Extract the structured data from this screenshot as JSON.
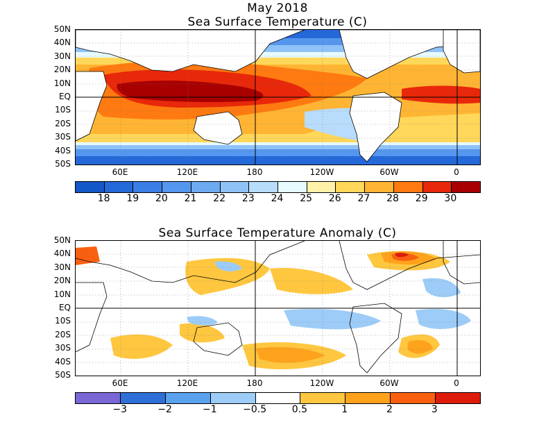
{
  "titles": {
    "month": "May 2018",
    "sst": "Sea Surface Temperature (C)",
    "anomaly": "Sea Surface Temperature Anomaly (C)"
  },
  "lat_labels": [
    "50N",
    "40N",
    "30N",
    "20N",
    "10N",
    "EQ",
    "10S",
    "20S",
    "30S",
    "40S",
    "50S"
  ],
  "lon_labels": [
    "60E",
    "120E",
    "180",
    "120W",
    "60W",
    "0"
  ],
  "sst_colorbar": {
    "labels": [
      "18",
      "19",
      "20",
      "21",
      "22",
      "23",
      "24",
      "25",
      "26",
      "27",
      "28",
      "29",
      "30"
    ],
    "colors": [
      "#1457c6",
      "#2568d8",
      "#3b7fe6",
      "#5596ee",
      "#6daaf2",
      "#8fc2f7",
      "#b8dcfb",
      "#e7fbff",
      "#fff2a8",
      "#ffd75a",
      "#ffb533",
      "#ff7a10",
      "#e8280a",
      "#a80000"
    ]
  },
  "anom_colorbar": {
    "labels": [
      "−3",
      "−2",
      "−1",
      "−0.5",
      "0.5",
      "1",
      "2",
      "3"
    ],
    "colors": [
      "#7a66d4",
      "#2f6fd8",
      "#5aa1ee",
      "#9cccf7",
      "#ffffff",
      "#ffc740",
      "#ffa21c",
      "#f86010",
      "#dd1b0b"
    ]
  }
}
